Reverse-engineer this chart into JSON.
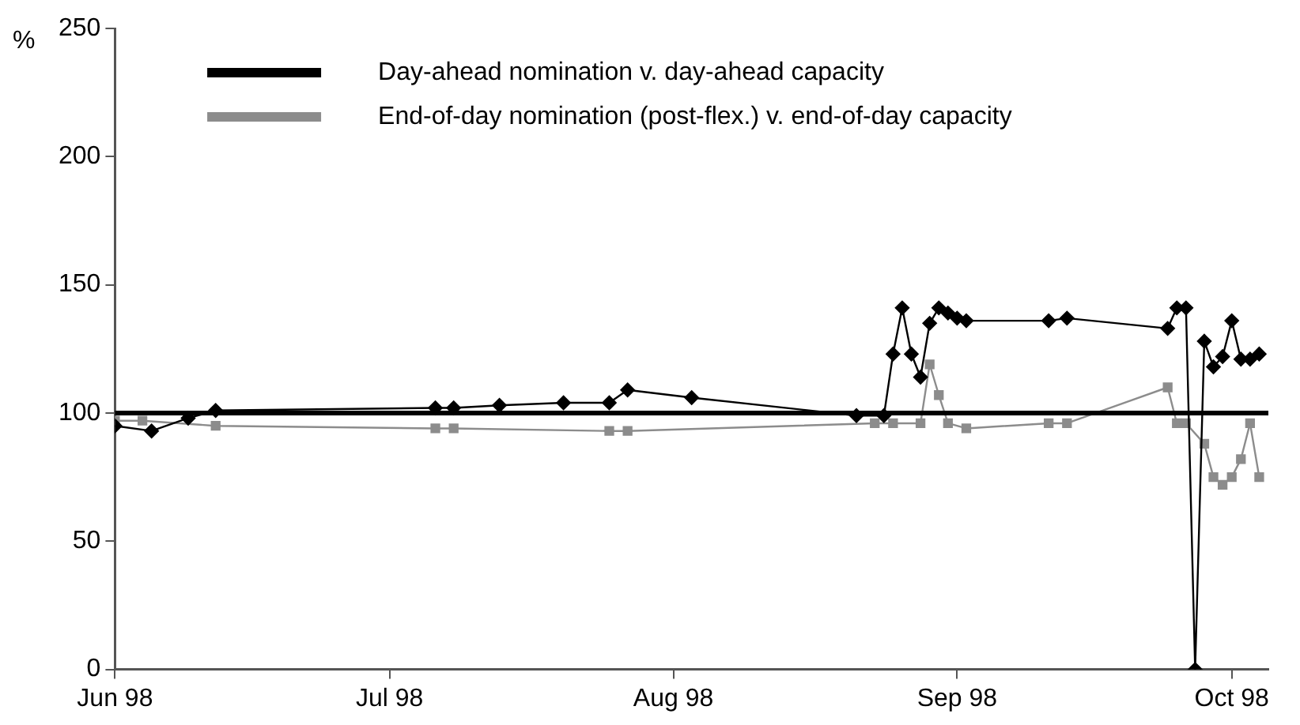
{
  "chart_data": {
    "type": "line",
    "ylabel": "%",
    "xlim": [
      "1998-06-01",
      "1998-10-05"
    ],
    "xticks": [
      {
        "value": "1998-06-01",
        "label": "Jun 98"
      },
      {
        "value": "1998-07-01",
        "label": "Jul 98"
      },
      {
        "value": "1998-08-01",
        "label": "Aug 98"
      },
      {
        "value": "1998-09-01",
        "label": "Sep 98"
      },
      {
        "value": "1998-10-01",
        "label": "Oct 98"
      }
    ],
    "ylim": [
      0,
      250
    ],
    "yticks": [
      0,
      50,
      100,
      150,
      200,
      250
    ],
    "grid": false,
    "legend": "top",
    "ref_lines": [
      {
        "axis": "y",
        "value": 100,
        "color": "#000000"
      }
    ],
    "series": [
      {
        "name": "Day-ahead nomination v. day-ahead capacity",
        "color": "#000000",
        "marker": "diamond",
        "x": [
          "1998-06-01",
          "1998-06-05",
          "1998-06-09",
          "1998-06-12",
          "1998-07-06",
          "1998-07-08",
          "1998-07-13",
          "1998-07-20",
          "1998-07-25",
          "1998-07-27",
          "1998-08-03",
          "1998-08-21",
          "1998-08-24",
          "1998-08-25",
          "1998-08-26",
          "1998-08-27",
          "1998-08-28",
          "1998-08-29",
          "1998-08-30",
          "1998-08-31",
          "1998-09-01",
          "1998-09-02",
          "1998-09-11",
          "1998-09-13",
          "1998-09-24",
          "1998-09-25",
          "1998-09-26",
          "1998-09-27",
          "1998-09-28",
          "1998-09-29",
          "1998-09-30",
          "1998-10-01",
          "1998-10-02",
          "1998-10-03",
          "1998-10-04"
        ],
        "values": [
          95,
          93,
          98,
          101,
          102,
          102,
          103,
          104,
          104,
          109,
          106,
          99,
          99,
          123,
          141,
          123,
          114,
          135,
          141,
          139,
          137,
          136,
          136,
          137,
          133,
          141,
          141,
          0,
          128,
          118,
          122,
          136,
          121,
          121,
          123
        ]
      },
      {
        "name": "End-of-day nomination (post-flex.) v. end-of-day capacity",
        "color": "#8c8c8c",
        "marker": "square",
        "x": [
          "1998-06-01",
          "1998-06-04",
          "1998-06-12",
          "1998-07-06",
          "1998-07-08",
          "1998-07-25",
          "1998-07-27",
          "1998-08-23",
          "1998-08-25",
          "1998-08-28",
          "1998-08-29",
          "1998-08-30",
          "1998-08-31",
          "1998-09-02",
          "1998-09-11",
          "1998-09-13",
          "1998-09-24",
          "1998-09-25",
          "1998-09-26",
          "1998-09-28",
          "1998-09-29",
          "1998-09-30",
          "1998-10-01",
          "1998-10-02",
          "1998-10-03",
          "1998-10-04"
        ],
        "values": [
          97,
          97,
          95,
          94,
          94,
          93,
          93,
          96,
          96,
          96,
          119,
          107,
          96,
          94,
          96,
          96,
          110,
          96,
          96,
          88,
          75,
          72,
          75,
          82,
          96,
          75
        ]
      }
    ]
  }
}
